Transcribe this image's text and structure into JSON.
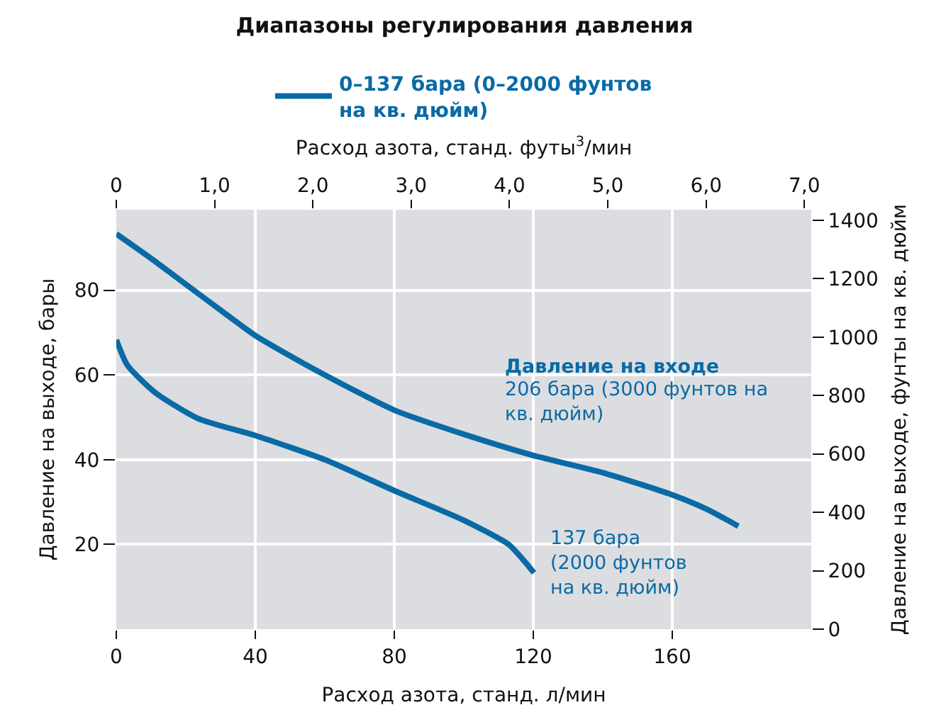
{
  "chart_data": {
    "type": "line",
    "title": "Диапазоны регулирования давления",
    "xlabel": "Расход азота, станд. л/мин",
    "x2label": "Расход азота, станд. футы$^{3}$/мин",
    "ylabel": "Давление на выходе, бары",
    "y2label": "Давление на выходе, фунты на кв. дюйм",
    "xlim": [
      0,
      200
    ],
    "xticks": [
      0,
      40,
      80,
      120,
      160
    ],
    "x2lim": [
      0,
      7.07
    ],
    "x2ticks": [
      0,
      {
        "value": 1,
        "label": "1,0"
      },
      {
        "value": 2,
        "label": "2,0"
      },
      {
        "value": 3,
        "label": "3,0"
      },
      {
        "value": 4,
        "label": "4,0"
      },
      {
        "value": 5,
        "label": "5,0"
      },
      {
        "value": 6,
        "label": "6,0"
      },
      {
        "value": 7,
        "label": "7,0"
      }
    ],
    "ylim": [
      0,
      99
    ],
    "yticks": [
      20,
      40,
      60,
      80
    ],
    "y2lim": [
      0,
      1436
    ],
    "y2ticks": [
      0,
      200,
      400,
      600,
      800,
      1000,
      1200,
      1400
    ],
    "grid": true,
    "legend": "top",
    "series": [
      {
        "name": "0–137 бара (0–2000 фунтов\nна кв. дюйм)",
        "color": "#0a6aa6",
        "x": [
          0,
          10,
          19.5,
          30,
          40,
          50,
          60,
          80,
          100,
          120,
          141,
          160,
          170,
          179
        ],
        "values": [
          93.3,
          87.5,
          81.7,
          75.3,
          69.3,
          64.5,
          60,
          51.7,
          46,
          41,
          36.7,
          31.7,
          28.3,
          24.3
        ]
      },
      {
        "color": "#0a6aa6",
        "x": [
          0,
          3.2,
          11.4,
          23.6,
          40,
          60,
          80,
          100,
          112.9,
          117.8,
          120.2
        ],
        "values": [
          68.3,
          62.3,
          55.7,
          49.7,
          45.7,
          40,
          32.7,
          25.7,
          20,
          15.7,
          13.3
        ]
      }
    ],
    "annotations": [
      "Давление на входе",
      "206 бара (3000 фунтов на\nкв. дюйм)",
      "137 бара\n(2000 фунтов\nна кв. дюйм)"
    ]
  }
}
